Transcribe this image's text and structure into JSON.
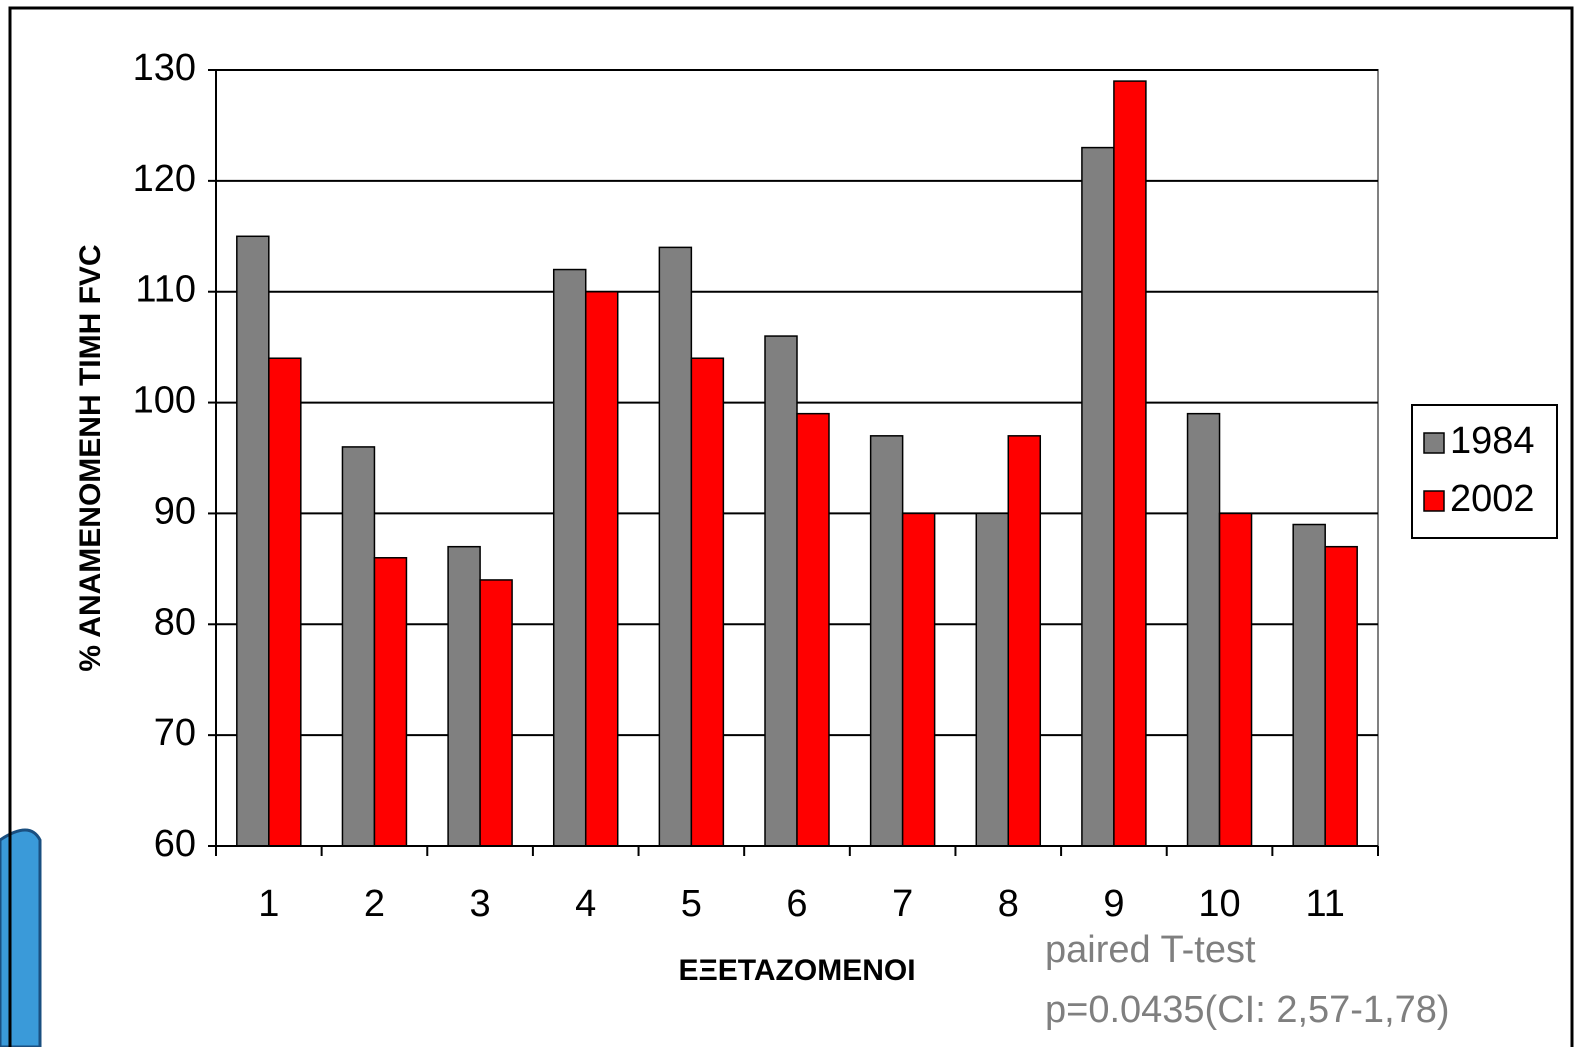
{
  "chart_data": {
    "type": "bar",
    "y_label": "% ΑΝΑΜΕΝΟΜΕΝΗ ΤΙΜΗ FVC",
    "x_label": "ΕΞΕΤΑΖΟΜΕΝΟΙ",
    "categories": [
      "1",
      "2",
      "3",
      "4",
      "5",
      "6",
      "7",
      "8",
      "9",
      "10",
      "11"
    ],
    "series": [
      {
        "name": "1984",
        "color": "#808080",
        "values": [
          115,
          96,
          87,
          112,
          114,
          106,
          97,
          90,
          123,
          99,
          89
        ]
      },
      {
        "name": "2002",
        "color": "#ff0000",
        "values": [
          104,
          86,
          84,
          110,
          104,
          99,
          90,
          97,
          129,
          90,
          87
        ]
      }
    ],
    "ylim": [
      60,
      130
    ],
    "yticks": [
      60,
      70,
      80,
      90,
      100,
      110,
      120,
      130
    ],
    "grid": true,
    "legend": "right",
    "annotations": [
      "paired T-test",
      "p=0.0435(CI: 2,57-1,78)"
    ]
  }
}
